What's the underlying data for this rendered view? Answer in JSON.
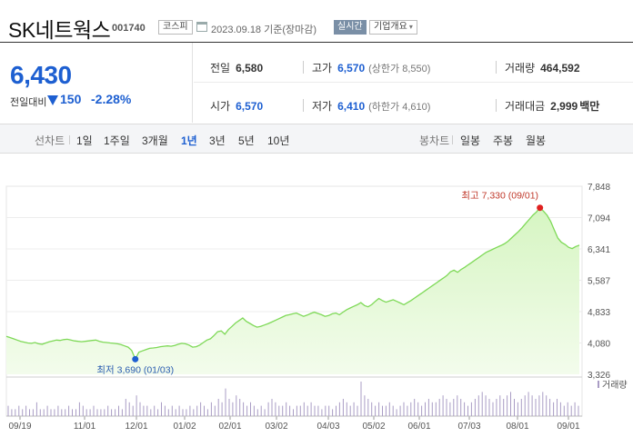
{
  "header": {
    "stock_name": "SK네트웍스",
    "stock_code": "001740",
    "market": "코스피",
    "date_basis": "2023.09.18 기준(장마감)",
    "realtime_label": "실시간",
    "overview_label": "기업개요"
  },
  "price": {
    "current": "6,430",
    "change_label": "전일대비",
    "change_value": "150",
    "change_pct": "-2.28%"
  },
  "stats": {
    "prev_close_label": "전일",
    "prev_close": "6,580",
    "high_label": "고가",
    "high": "6,570",
    "upper_limit": "(상한가 8,550)",
    "volume_label": "거래량",
    "volume": "464,592",
    "open_label": "시가",
    "open": "6,570",
    "low_label": "저가",
    "low": "6,410",
    "lower_limit": "(하한가 4,610)",
    "amount_label": "거래대금",
    "amount": "2,999",
    "amount_unit": "백만"
  },
  "tabs": {
    "line_chart_label": "선차트",
    "periods": [
      "1일",
      "1주일",
      "3개월",
      "1년",
      "3년",
      "5년",
      "10년"
    ],
    "active_period": "1년",
    "candle_chart_label": "봉차트",
    "candle_periods": [
      "일봉",
      "주봉",
      "월봉"
    ]
  },
  "colors": {
    "accent_blue": "#1d5fd1",
    "area_line": "#7ed957",
    "area_fill": "#d6f5c2",
    "max_marker": "#e02020",
    "min_marker": "#1d5fd1"
  },
  "chart_data": {
    "type": "area",
    "ylim": [
      3326,
      7848
    ],
    "y_ticks": [
      "7,848",
      "7,094",
      "6,341",
      "5,587",
      "4,833",
      "4,080",
      "3,326"
    ],
    "x_labels": [
      "09/19",
      "11/01",
      "12/01",
      "01/02",
      "02/01",
      "03/02",
      "04/03",
      "05/02",
      "06/01",
      "07/03",
      "08/01",
      "09/01"
    ],
    "max_annotation": "최고 7,330 (09/01)",
    "min_annotation": "최저 3,690 (01/03)",
    "volume_label": "거래량",
    "series": [
      {
        "values": [
          4240,
          4210,
          4180,
          4150,
          4120,
          4100,
          4080,
          4070,
          4090,
          4060,
          4050,
          4080,
          4110,
          4130,
          4150,
          4140,
          4160,
          4170,
          4150,
          4130,
          4120,
          4110,
          4120,
          4130,
          4140,
          4150,
          4120,
          4100,
          4090,
          4080,
          4070,
          4060,
          4040,
          4010,
          3980,
          3900,
          3690,
          3860,
          3890,
          3920,
          3950,
          3960,
          3970,
          3990,
          4000,
          4010,
          4000,
          4020,
          4050,
          4070,
          4060,
          4030,
          3980,
          3990,
          4030,
          4090,
          4150,
          4180,
          4260,
          4350,
          4370,
          4290,
          4400,
          4480,
          4560,
          4620,
          4680,
          4600,
          4550,
          4500,
          4460,
          4480,
          4510,
          4540,
          4580,
          4620,
          4660,
          4700,
          4740,
          4760,
          4780,
          4800,
          4760,
          4720,
          4750,
          4790,
          4820,
          4790,
          4760,
          4720,
          4740,
          4780,
          4800,
          4760,
          4820,
          4880,
          4920,
          4960,
          5000,
          5050,
          4980,
          4950,
          5000,
          5080,
          5150,
          5100,
          5060,
          5090,
          5120,
          5080,
          5040,
          5000,
          5050,
          5100,
          5160,
          5220,
          5280,
          5340,
          5400,
          5460,
          5520,
          5580,
          5640,
          5700,
          5790,
          5830,
          5780,
          5850,
          5900,
          5960,
          6020,
          6080,
          6140,
          6200,
          6260,
          6300,
          6340,
          6380,
          6420,
          6460,
          6520,
          6600,
          6680,
          6760,
          6850,
          6950,
          7050,
          7150,
          7230,
          7330,
          7250,
          7150,
          7000,
          6800,
          6600,
          6500,
          6450,
          6380,
          6350,
          6400,
          6430
        ]
      }
    ],
    "volume": [
      3,
      2,
      2,
      3,
      2,
      3,
      2,
      2,
      4,
      2,
      2,
      3,
      2,
      2,
      3,
      2,
      2,
      3,
      2,
      2,
      4,
      3,
      2,
      2,
      3,
      2,
      2,
      2,
      3,
      2,
      2,
      3,
      2,
      5,
      4,
      3,
      6,
      4,
      3,
      3,
      2,
      3,
      2,
      4,
      3,
      2,
      3,
      2,
      3,
      2,
      2,
      3,
      2,
      3,
      4,
      3,
      2,
      4,
      3,
      5,
      4,
      8,
      5,
      4,
      6,
      5,
      4,
      3,
      4,
      3,
      2,
      3,
      2,
      4,
      5,
      4,
      3,
      3,
      4,
      3,
      2,
      3,
      3,
      4,
      3,
      4,
      3,
      3,
      2,
      3,
      3,
      2,
      3,
      4,
      5,
      4,
      3,
      4,
      3,
      10,
      6,
      5,
      4,
      3,
      4,
      3,
      3,
      4,
      3,
      2,
      3,
      4,
      3,
      4,
      5,
      4,
      3,
      4,
      5,
      4,
      4,
      5,
      6,
      5,
      4,
      5,
      6,
      5,
      4,
      3,
      4,
      5,
      6,
      7,
      6,
      5,
      4,
      5,
      6,
      5,
      6,
      7,
      5,
      4,
      5,
      6,
      7,
      6,
      5,
      6,
      7,
      6,
      5,
      4,
      5,
      4,
      3,
      4,
      3,
      4,
      3
    ]
  }
}
